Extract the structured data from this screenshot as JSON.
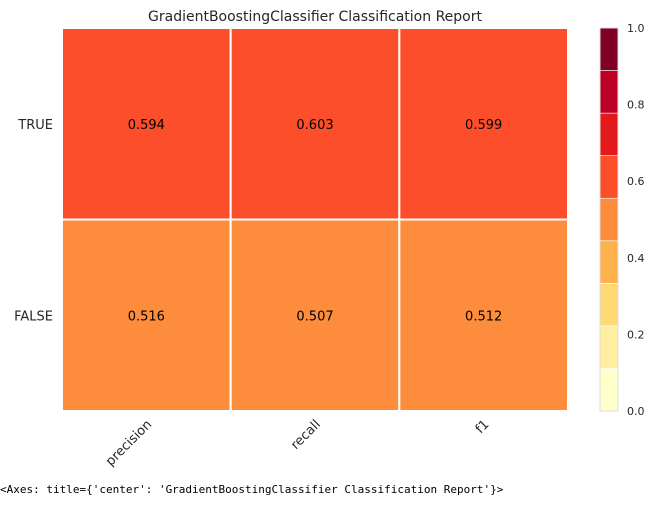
{
  "repr_text": "<Axes: title={'center': 'GradientBoostingClassifier Classification Report'}>",
  "chart_data": {
    "type": "heatmap",
    "title": "GradientBoostingClassifier Classification Report",
    "rows": [
      "TRUE",
      "FALSE"
    ],
    "columns": [
      "precision",
      "recall",
      "f1"
    ],
    "values": [
      [
        0.594,
        0.603,
        0.599
      ],
      [
        0.516,
        0.507,
        0.512
      ]
    ],
    "value_labels": [
      [
        "0.594",
        "0.603",
        "0.599"
      ],
      [
        "0.516",
        "0.507",
        "0.512"
      ]
    ],
    "colorbar": {
      "range": [
        0.0,
        1.0
      ],
      "tick_labels": [
        "0.0",
        "0.2",
        "0.4",
        "0.6",
        "0.8",
        "1.0"
      ],
      "tick_values": [
        0.0,
        0.2,
        0.4,
        0.6,
        0.8,
        1.0
      ],
      "colormap": "YlOrRd",
      "colors": [
        "#ffffcc",
        "#ffeda0",
        "#fed976",
        "#feb24c",
        "#fd8d3c",
        "#fc4e2a",
        "#e31a1c",
        "#bd0026",
        "#800026"
      ]
    },
    "grid": true
  }
}
